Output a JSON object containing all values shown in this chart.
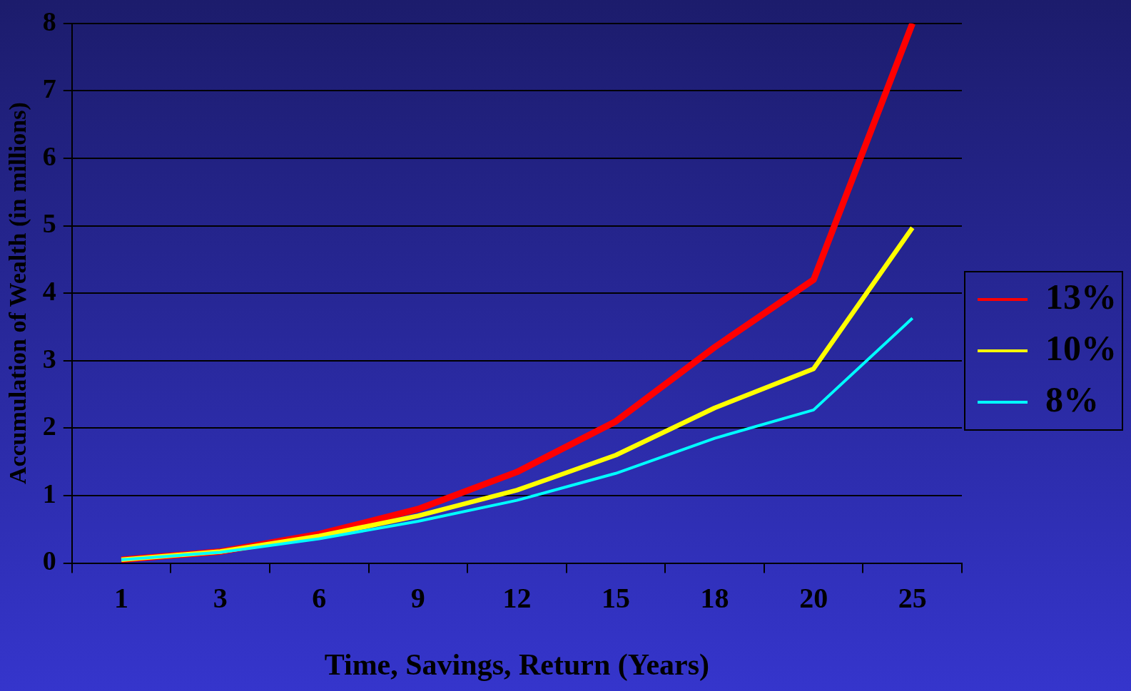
{
  "chart_data": {
    "type": "line",
    "xlabel": "Time, Savings, Return (Years)",
    "ylabel": "Accumulation of Wealth (in millions)",
    "categories": [
      "1",
      "3",
      "6",
      "9",
      "12",
      "15",
      "18",
      "20",
      "25"
    ],
    "series": [
      {
        "name": "13%",
        "color": "#ff0000",
        "values": [
          0.05,
          0.17,
          0.43,
          0.8,
          1.35,
          2.1,
          3.2,
          4.2,
          8
        ]
      },
      {
        "name": "10%",
        "color": "#ffff00",
        "values": [
          0.05,
          0.17,
          0.4,
          0.7,
          1.08,
          1.6,
          2.3,
          2.88,
          4.97
        ]
      },
      {
        "name": "8%",
        "color": "#00ffff",
        "values": [
          0.05,
          0.16,
          0.36,
          0.62,
          0.93,
          1.33,
          1.85,
          2.27,
          3.63
        ]
      }
    ],
    "ylim": [
      0,
      8
    ],
    "yticks": [
      0,
      1,
      2,
      3,
      4,
      5,
      6,
      7,
      8
    ],
    "grid": "y",
    "legend": "right",
    "marker": "none",
    "line_style": "solid"
  }
}
